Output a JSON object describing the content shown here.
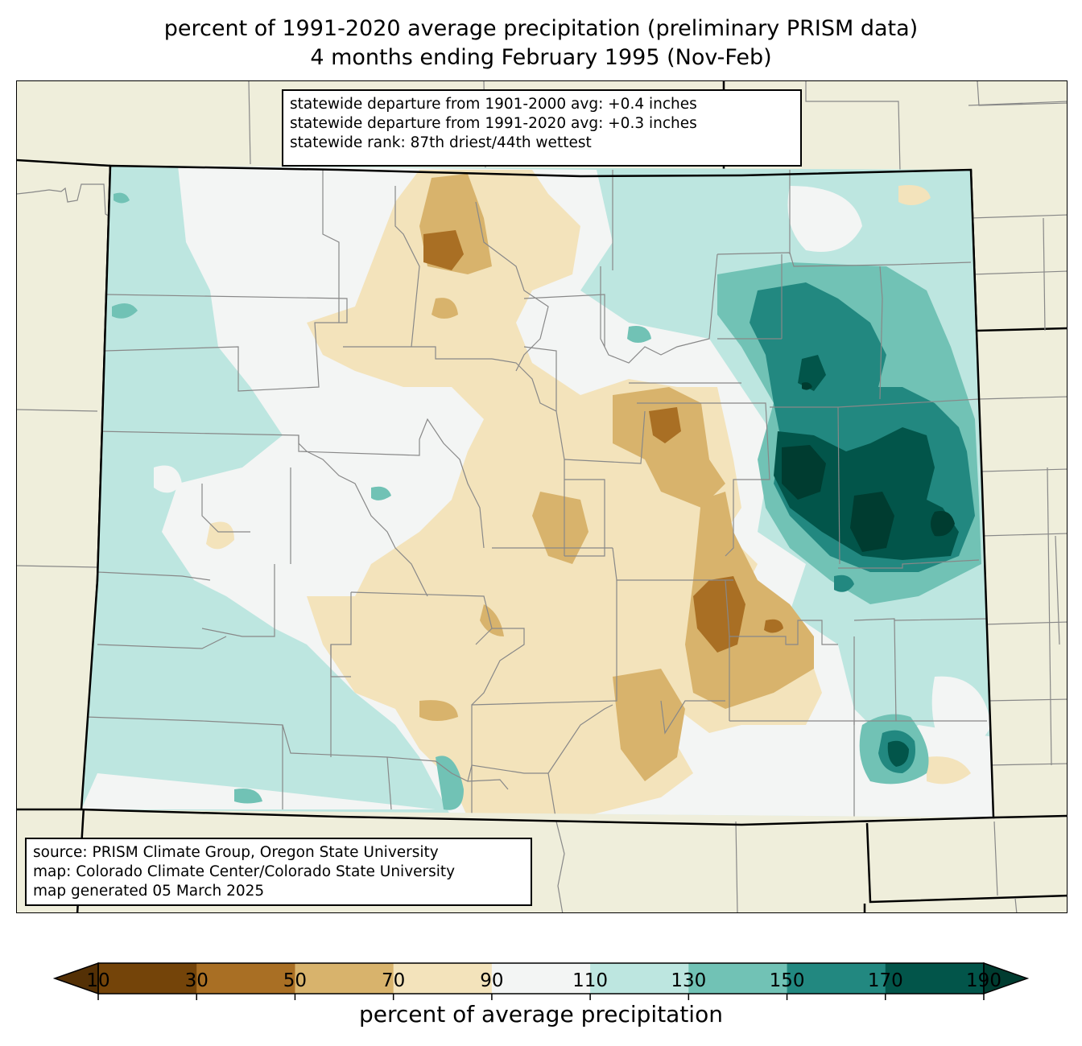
{
  "title": {
    "line1": "percent of 1991-2020 average precipitation (preliminary PRISM data)",
    "line2": "4 months ending February 1995 (Nov-Feb)"
  },
  "stats_box": {
    "lines": [
      "statewide departure from 1901-2000 avg: +0.4 inches",
      "statewide departure from 1991-2020 avg: +0.3 inches",
      "statewide rank: 87th driest/44th wettest"
    ]
  },
  "source_box": {
    "lines": [
      "source: PRISM Climate Group, Oregon State University",
      "map: Colorado Climate Center/Colorado State University",
      "map generated 05 March 2025"
    ]
  },
  "colorbar": {
    "label": "percent of average precipitation",
    "ticks": [
      "10",
      "30",
      "50",
      "70",
      "90",
      "110",
      "130",
      "150",
      "170",
      "190"
    ],
    "under_color": "#543005",
    "over_color": "#003c30",
    "bins": [
      {
        "from": 10,
        "to": 30,
        "color": "#744409"
      },
      {
        "from": 30,
        "to": 50,
        "color": "#a96f24"
      },
      {
        "from": 50,
        "to": 70,
        "color": "#d8b36c"
      },
      {
        "from": 70,
        "to": 90,
        "color": "#f3e3bb"
      },
      {
        "from": 90,
        "to": 110,
        "color": "#f3f5f4"
      },
      {
        "from": 110,
        "to": 130,
        "color": "#bde6e0"
      },
      {
        "from": 130,
        "to": 150,
        "color": "#71c2b5"
      },
      {
        "from": 150,
        "to": 170,
        "color": "#228880"
      },
      {
        "from": 170,
        "to": 190,
        "color": "#02554a"
      }
    ]
  },
  "map": {
    "region": "Colorado",
    "background_color": "#efeedb",
    "state_line_color": "#000000",
    "county_line_color": "#888888"
  }
}
